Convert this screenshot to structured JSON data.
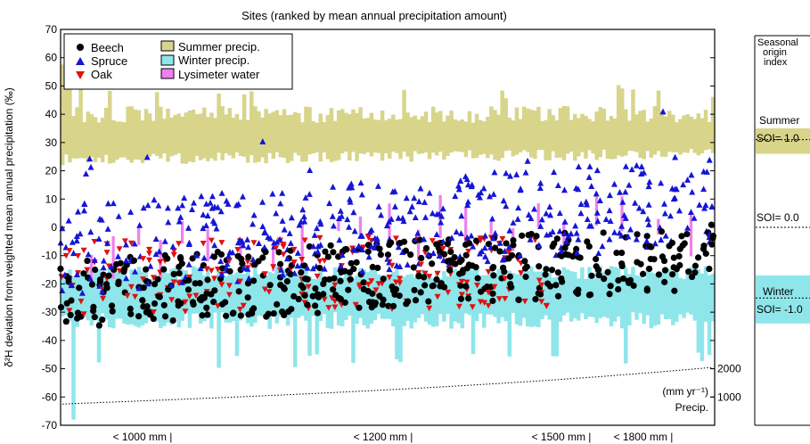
{
  "chart_data": {
    "type": "scatter",
    "title": "Sites (ranked by mean annual precipitation amount)",
    "ylabel": "δ²H deviation from weighted mean annual precipitation (‰)",
    "ylim": [
      -70,
      70
    ],
    "yticks": [
      -70,
      -60,
      -50,
      -40,
      -30,
      -20,
      -10,
      0,
      10,
      20,
      30,
      40,
      50,
      60,
      70
    ],
    "x_group_labels": [
      "< 1000 mm |",
      "< 1200 mm |",
      "< 1500 mm |",
      "< 1800 mm |"
    ],
    "legend": {
      "beech": "Beech",
      "spruce": "Spruce",
      "oak": "Oak",
      "summer": "Summer precip.",
      "winter": "Winter precip.",
      "lysimeter": "Lysimeter water"
    },
    "colors": {
      "beech": "#000000",
      "spruce": "#1515d6",
      "oak": "#e01010",
      "summer": "#d8d48a",
      "winter": "#8ee6ea",
      "lysimeter": "#ee80ee"
    },
    "precip_axis": {
      "unit_label": "(mm yr⁻¹)",
      "name": "Precip.",
      "ticks": [
        1000,
        2000
      ],
      "start": 750,
      "end": 2050
    },
    "n_sites": 180,
    "summer_band": {
      "low_mean": 24,
      "high_mean": 40
    },
    "winter_band": {
      "low_mean": -33,
      "high_mean": -16
    },
    "soi_panel": {
      "title_lines": [
        "Seasonal",
        "origin",
        "index"
      ],
      "summer_label": "Summer",
      "summer_value": "SOI= 1.0",
      "neutral_value": "SOI= 0.0",
      "winter_label": "Winter",
      "winter_value": "SOI= -1.0",
      "summer_range": [
        26,
        35
      ],
      "winter_range": [
        -34,
        -17
      ],
      "summer_line": 31,
      "neutral_line": 0,
      "winter_line": -25
    }
  }
}
